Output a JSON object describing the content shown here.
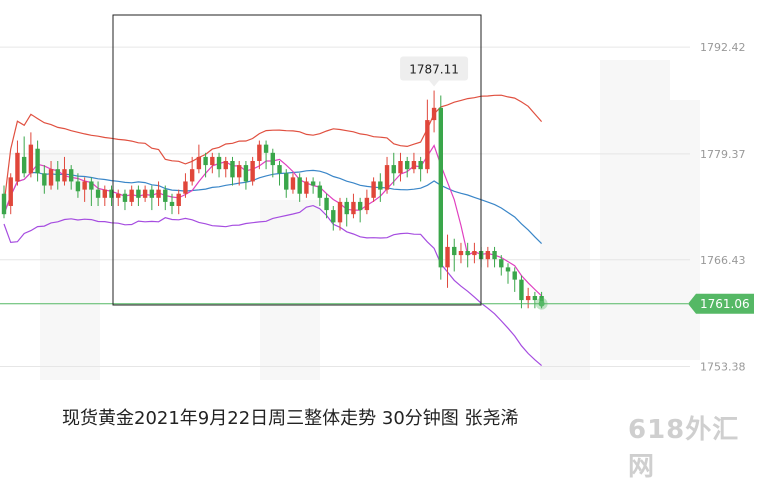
{
  "caption": "现货黄金2021年9月22日周三整体走势 30分钟图 张尧浠",
  "watermark": "618外汇网",
  "colors": {
    "up": "#e0463a",
    "down": "#3aa64a",
    "boll_upper": "#e05040",
    "boll_mid": "#3a86c8",
    "boll_lower": "#a64de0",
    "ma": "#e040c0",
    "price_line": "#55b865",
    "grid": "#e6e6e6"
  },
  "chart_data": {
    "type": "candlestick",
    "title": "现货黄金2021年9月22日周三整体走势 30分钟图 张尧浠",
    "ylim": [
      1751,
      1795
    ],
    "yticks": [
      1792.42,
      1779.37,
      1766.43,
      1753.38
    ],
    "y_tick_labels": [
      "1792.42",
      "1779.37",
      "1766.43",
      "1753.38"
    ],
    "current_price": 1761.06,
    "current_price_label": "1761.06",
    "high_annotation": {
      "value": 1787.11,
      "label": "1787.11",
      "bar_index": 64
    },
    "candles": [
      [
        1774.5,
        1772.0,
        1771.5,
        1775.5
      ],
      [
        1773.0,
        1776.5,
        1772.0,
        1777.0
      ],
      [
        1776.0,
        1779.5,
        1775.5,
        1781.0
      ],
      [
        1779.0,
        1777.0,
        1776.5,
        1781.5
      ],
      [
        1777.0,
        1780.5,
        1776.5,
        1782.0
      ],
      [
        1780.0,
        1777.0,
        1776.0,
        1781.0
      ],
      [
        1777.0,
        1775.5,
        1774.5,
        1778.0
      ],
      [
        1775.5,
        1777.5,
        1775.0,
        1778.5
      ],
      [
        1777.5,
        1776.0,
        1775.0,
        1778.5
      ],
      [
        1776.0,
        1777.5,
        1775.5,
        1779.0
      ],
      [
        1777.5,
        1776.0,
        1775.0,
        1778.0
      ],
      [
        1776.0,
        1774.8,
        1774.0,
        1777.0
      ],
      [
        1775.0,
        1776.0,
        1773.5,
        1776.5
      ],
      [
        1776.0,
        1775.0,
        1773.0,
        1776.5
      ],
      [
        1775.0,
        1774.0,
        1773.0,
        1776.0
      ],
      [
        1774.0,
        1775.0,
        1773.0,
        1775.5
      ],
      [
        1775.0,
        1774.0,
        1773.0,
        1775.5
      ],
      [
        1774.0,
        1774.5,
        1773.0,
        1775.0
      ],
      [
        1774.5,
        1773.5,
        1772.5,
        1775.0
      ],
      [
        1773.5,
        1775.0,
        1773.0,
        1775.5
      ],
      [
        1775.0,
        1774.0,
        1773.0,
        1775.5
      ],
      [
        1774.0,
        1775.0,
        1773.5,
        1775.5
      ],
      [
        1775.0,
        1774.0,
        1772.5,
        1775.5
      ],
      [
        1774.0,
        1775.0,
        1773.0,
        1776.0
      ],
      [
        1775.0,
        1773.5,
        1772.5,
        1775.5
      ],
      [
        1773.5,
        1773.0,
        1772.0,
        1774.5
      ],
      [
        1773.0,
        1774.5,
        1772.0,
        1775.0
      ],
      [
        1774.5,
        1776.0,
        1774.0,
        1777.0
      ],
      [
        1776.0,
        1777.5,
        1775.5,
        1779.0
      ],
      [
        1777.5,
        1779.0,
        1777.0,
        1780.5
      ],
      [
        1779.0,
        1778.0,
        1776.5,
        1779.5
      ],
      [
        1778.0,
        1779.0,
        1777.0,
        1779.5
      ],
      [
        1779.0,
        1777.5,
        1776.5,
        1779.5
      ],
      [
        1777.5,
        1778.5,
        1776.5,
        1779.0
      ],
      [
        1778.5,
        1776.5,
        1775.5,
        1779.0
      ],
      [
        1776.5,
        1778.0,
        1775.5,
        1778.5
      ],
      [
        1778.0,
        1776.0,
        1775.0,
        1778.5
      ],
      [
        1776.0,
        1778.5,
        1775.5,
        1779.0
      ],
      [
        1778.5,
        1780.5,
        1777.5,
        1781.0
      ],
      [
        1780.5,
        1779.5,
        1777.5,
        1781.0
      ],
      [
        1779.5,
        1778.0,
        1776.5,
        1780.0
      ],
      [
        1778.0,
        1777.0,
        1775.5,
        1778.5
      ],
      [
        1777.0,
        1775.0,
        1774.0,
        1777.5
      ],
      [
        1775.0,
        1776.5,
        1774.5,
        1777.0
      ],
      [
        1776.5,
        1774.5,
        1773.5,
        1777.0
      ],
      [
        1774.5,
        1776.0,
        1774.0,
        1776.5
      ],
      [
        1776.0,
        1775.5,
        1774.5,
        1776.5
      ],
      [
        1775.5,
        1774.0,
        1773.0,
        1776.0
      ],
      [
        1774.0,
        1772.5,
        1771.5,
        1774.5
      ],
      [
        1772.5,
        1771.0,
        1770.0,
        1773.0
      ],
      [
        1771.0,
        1773.5,
        1770.0,
        1774.0
      ],
      [
        1773.5,
        1772.0,
        1770.5,
        1774.0
      ],
      [
        1772.0,
        1773.5,
        1771.5,
        1774.5
      ],
      [
        1773.5,
        1772.5,
        1771.0,
        1774.0
      ],
      [
        1772.5,
        1774.0,
        1772.0,
        1775.0
      ],
      [
        1774.0,
        1776.0,
        1773.5,
        1776.5
      ],
      [
        1776.0,
        1775.0,
        1773.5,
        1777.0
      ],
      [
        1775.0,
        1778.0,
        1774.5,
        1779.0
      ],
      [
        1778.0,
        1777.0,
        1775.5,
        1779.5
      ],
      [
        1777.0,
        1778.5,
        1776.0,
        1779.5
      ],
      [
        1778.5,
        1777.5,
        1776.5,
        1779.0
      ],
      [
        1777.5,
        1778.5,
        1777.0,
        1779.5
      ],
      [
        1778.5,
        1777.5,
        1776.0,
        1779.0
      ],
      [
        1777.5,
        1783.5,
        1777.0,
        1786.0
      ],
      [
        1783.5,
        1785.0,
        1782.0,
        1787.11
      ],
      [
        1785.0,
        1765.5,
        1764.0,
        1786.5
      ],
      [
        1765.5,
        1768.0,
        1763.0,
        1769.5
      ],
      [
        1768.0,
        1767.0,
        1765.0,
        1769.0
      ],
      [
        1767.0,
        1767.5,
        1766.0,
        1768.5
      ],
      [
        1767.5,
        1767.0,
        1765.5,
        1768.5
      ],
      [
        1767.0,
        1767.5,
        1766.0,
        1768.5
      ],
      [
        1767.5,
        1766.5,
        1765.5,
        1768.0
      ],
      [
        1766.5,
        1767.5,
        1765.5,
        1768.0
      ],
      [
        1767.5,
        1766.5,
        1765.5,
        1768.0
      ],
      [
        1766.5,
        1765.5,
        1764.5,
        1767.0
      ],
      [
        1765.5,
        1765.0,
        1763.5,
        1766.0
      ],
      [
        1765.0,
        1764.0,
        1762.5,
        1765.5
      ],
      [
        1764.0,
        1761.5,
        1760.5,
        1764.5
      ],
      [
        1761.5,
        1762.0,
        1760.5,
        1763.0
      ],
      [
        1762.0,
        1761.5,
        1760.5,
        1762.5
      ],
      [
        1762.0,
        1761.06,
        1760.5,
        1762.5
      ]
    ]
  }
}
